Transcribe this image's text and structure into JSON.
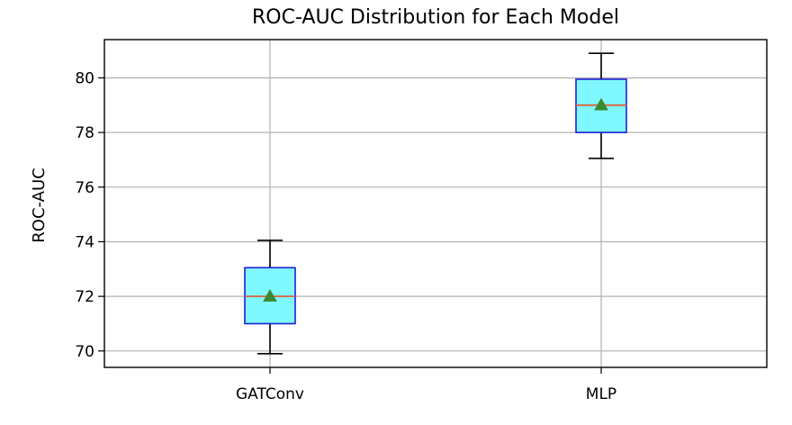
{
  "chart_data": {
    "type": "boxplot",
    "title": "ROC-AUC Distribution for Each Model",
    "xlabel": "",
    "ylabel": "ROC-AUC",
    "categories": [
      "GATConv",
      "MLP"
    ],
    "boxes": [
      {
        "category": "GATConv",
        "whisker_low": 69.9,
        "q1": 71.0,
        "median": 72.0,
        "mean": 72.0,
        "q3": 73.05,
        "whisker_high": 74.05
      },
      {
        "category": "MLP",
        "whisker_low": 77.05,
        "q1": 78.0,
        "median": 79.0,
        "mean": 79.0,
        "q3": 79.95,
        "whisker_high": 80.9
      }
    ],
    "ylim": [
      69.4,
      81.4
    ],
    "yticks": [
      "70",
      "72",
      "74",
      "76",
      "78",
      "80"
    ],
    "grid": true,
    "colors": {
      "box_fill": "#7ff8ff",
      "box_edge": "#1f1fd6",
      "median_line": "#e0623a",
      "mean_marker": "#3a8a2e",
      "whisker": "#000000",
      "grid": "#b0b0b0"
    }
  }
}
